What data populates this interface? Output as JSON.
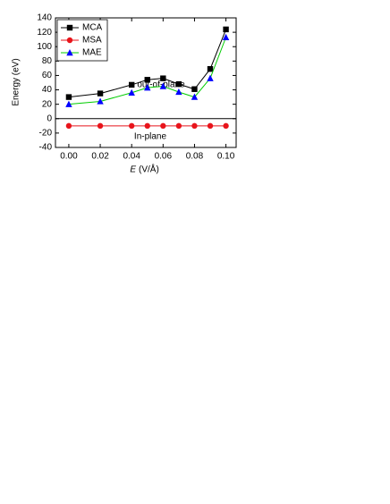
{
  "chart_data": {
    "type": "line",
    "x_label_symbol": "E",
    "x_label_unit": "(V/Å)",
    "y_label": "Energy (eV)",
    "x": [
      0,
      0.02,
      0.04,
      0.05,
      0.06,
      0.07,
      0.08,
      0.09,
      0.1
    ],
    "series": [
      {
        "name": "MCA",
        "color": "#000000",
        "marker": "square",
        "marker_color": "#000000",
        "values": [
          30,
          35,
          47,
          54,
          56,
          48,
          41,
          69,
          124
        ]
      },
      {
        "name": "MSA",
        "color": "#e8141b",
        "marker": "circle",
        "marker_color": "#e8141b",
        "values": [
          -10,
          -10,
          -10,
          -10,
          -10,
          -10,
          -10,
          -10,
          -10
        ]
      },
      {
        "name": "MAE",
        "color": "#00cc00",
        "marker": "triangle",
        "marker_color": "#0000ff",
        "values": [
          20,
          24,
          36,
          43,
          45,
          37,
          30,
          56,
          113
        ]
      }
    ],
    "xlim": [
      -0.0085,
      0.1065
    ],
    "xticks": [
      {
        "value": 0,
        "label": "0.00"
      },
      {
        "value": 0.02,
        "label": "0.02"
      },
      {
        "value": 0.04,
        "label": "0.04"
      },
      {
        "value": 0.06,
        "label": "0.06"
      },
      {
        "value": 0.08,
        "label": "0.08"
      },
      {
        "value": 0.1,
        "label": "0.10"
      }
    ],
    "ylim": [
      -40,
      140
    ],
    "yticks": [
      -40,
      -20,
      0,
      20,
      40,
      60,
      80,
      100,
      120,
      140
    ],
    "reference_line": 0,
    "annotations": [
      {
        "text": "out-of-plane",
        "color": "#22dd22"
      },
      {
        "text": "In-plane",
        "color": "#800080"
      }
    ],
    "legend": "upper left"
  }
}
